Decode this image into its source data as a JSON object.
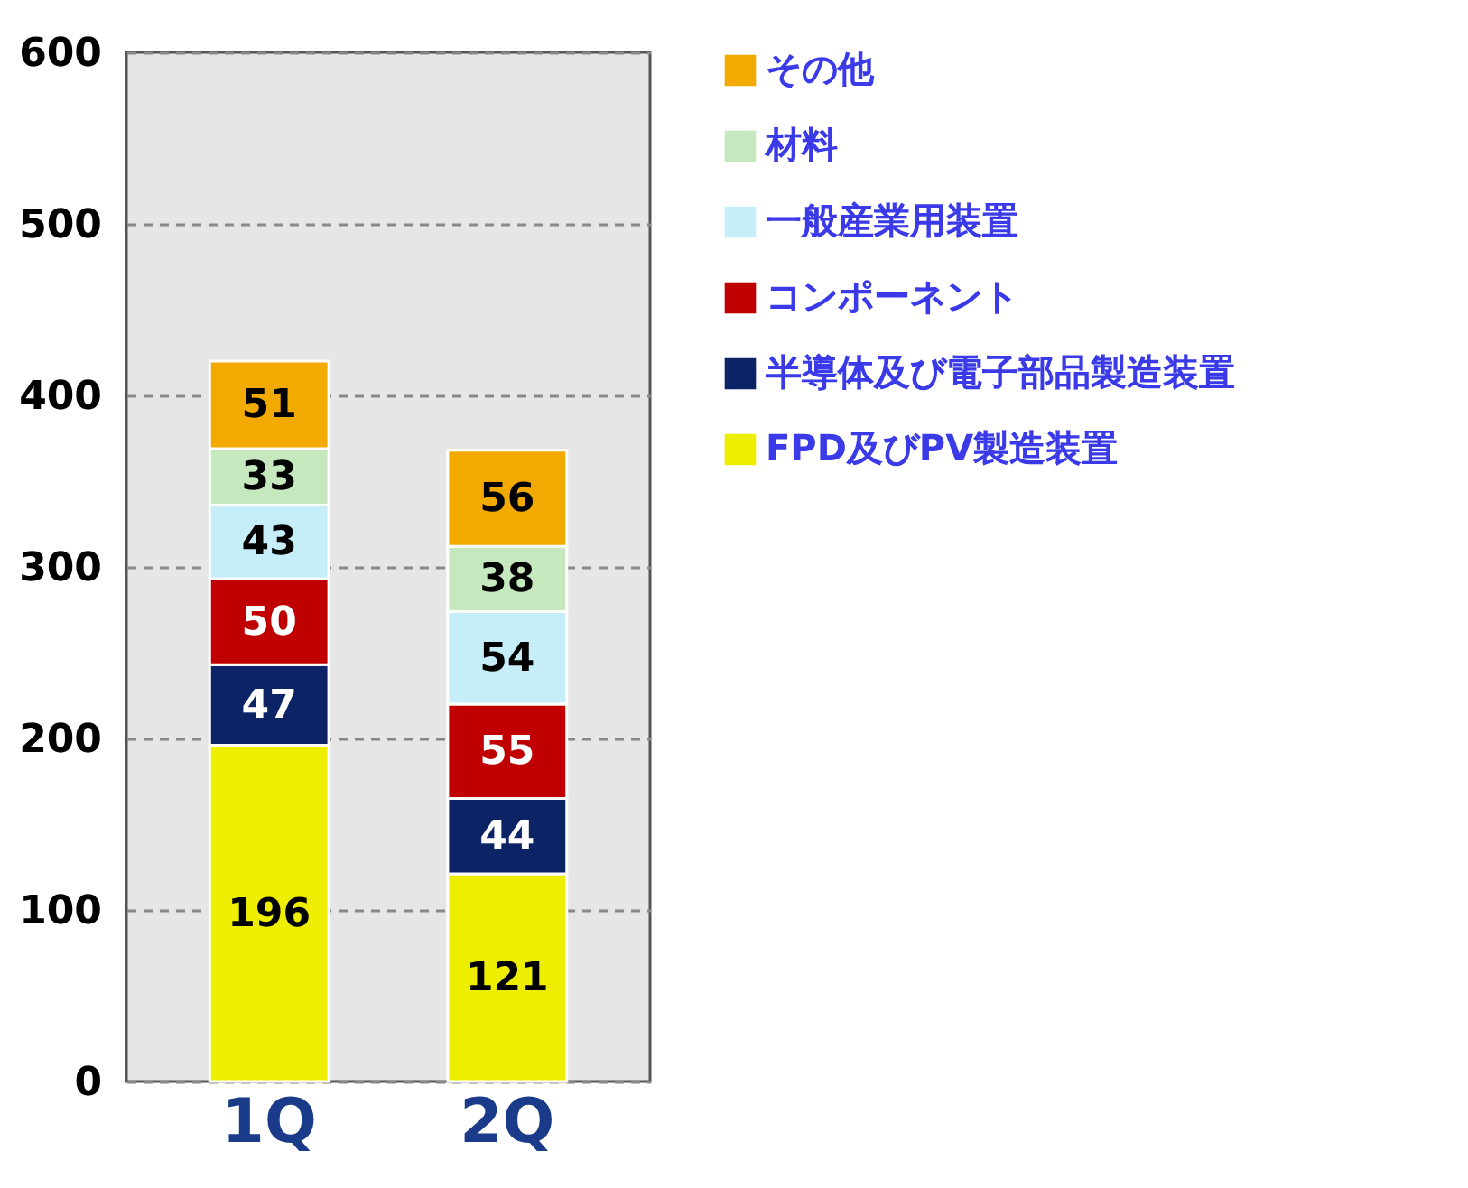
{
  "chart_data": {
    "type": "bar",
    "stacked": true,
    "categories": [
      "1Q",
      "2Q"
    ],
    "series": [
      {
        "name": "FPD及びPV製造装置",
        "color": "#eeee00",
        "values": [
          196,
          121
        ]
      },
      {
        "name": "半導体及び電子部品製造装置",
        "color": "#0c2466",
        "values": [
          47,
          44
        ]
      },
      {
        "name": "コンポーネント",
        "color": "#c00000",
        "values": [
          50,
          55
        ]
      },
      {
        "name": "一般産業用装置",
        "color": "#c6eef8",
        "values": [
          43,
          54
        ]
      },
      {
        "name": "材料",
        "color": "#c6e8bf",
        "values": [
          33,
          38
        ]
      },
      {
        "name": "その他",
        "color": "#f2aa00",
        "values": [
          51,
          56
        ]
      }
    ],
    "ylim": [
      0,
      600
    ],
    "yticks": [
      0,
      100,
      200,
      300,
      400,
      500,
      600
    ],
    "grid": "y",
    "legend": "right",
    "data_labels": true
  }
}
